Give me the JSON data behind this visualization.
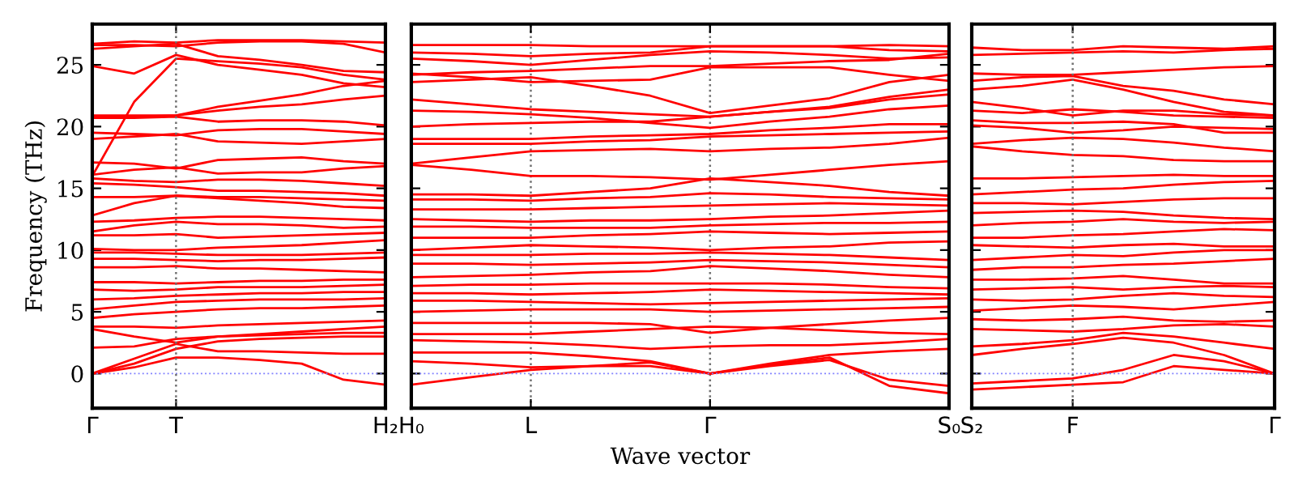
{
  "chart_data": [
    {
      "type": "line",
      "ylabel": "Frequency (THz)",
      "categories": [
        "Γ",
        null,
        "T",
        null,
        null,
        null,
        null,
        "H₂"
      ],
      "ylim": [
        -2.8,
        28.3
      ],
      "yticks": [
        0,
        5,
        10,
        15,
        20,
        25
      ],
      "tick_labels": true,
      "ref_lines": [
        {
          "axis": "y",
          "value": 0,
          "color": "#8080ff",
          "line_style": "dotted"
        },
        {
          "axis": "x",
          "value": "T",
          "color": "#707070",
          "line_style": "dotted"
        }
      ],
      "series": [
        {
          "color": "#ff0000",
          "values": [
            0,
            0.5,
            1.3,
            1.3,
            1.1,
            0.8,
            -0.5,
            -0.9
          ]
        },
        {
          "color": "#ff0000",
          "values": [
            0,
            0.8,
            2.0,
            2.6,
            2.8,
            2.9,
            3.0,
            3.0
          ]
        },
        {
          "color": "#ff0000",
          "values": [
            0,
            1.2,
            2.4,
            1.8,
            1.8,
            1.7,
            1.6,
            1.6
          ]
        },
        {
          "color": "#ff0000",
          "values": [
            2.1,
            2.2,
            2.8,
            3.0,
            3.1,
            3.2,
            3.3,
            3.3
          ]
        },
        {
          "color": "#ff0000",
          "values": [
            3.6,
            3.0,
            2.5,
            3.0,
            3.2,
            3.4,
            3.6,
            3.8
          ]
        },
        {
          "color": "#ff0000",
          "values": [
            3.8,
            3.8,
            3.7,
            3.9,
            4.0,
            4.1,
            4.2,
            4.3
          ]
        },
        {
          "color": "#ff0000",
          "values": [
            4.5,
            4.8,
            5.0,
            5.2,
            5.3,
            5.3,
            5.4,
            5.5
          ]
        },
        {
          "color": "#ff0000",
          "values": [
            5.2,
            5.5,
            5.8,
            5.9,
            6.0,
            6.0,
            6.0,
            6.1
          ]
        },
        {
          "color": "#ff0000",
          "values": [
            6.0,
            6.1,
            6.3,
            6.4,
            6.5,
            6.5,
            6.6,
            6.6
          ]
        },
        {
          "color": "#ff0000",
          "values": [
            6.8,
            6.7,
            6.8,
            7.0,
            7.0,
            7.0,
            7.1,
            7.2
          ]
        },
        {
          "color": "#ff0000",
          "values": [
            7.4,
            7.4,
            7.3,
            7.4,
            7.5,
            7.5,
            7.6,
            7.6
          ]
        },
        {
          "color": "#ff0000",
          "values": [
            8.6,
            8.6,
            8.7,
            8.5,
            8.5,
            8.4,
            8.3,
            8.2
          ]
        },
        {
          "color": "#ff0000",
          "values": [
            9.3,
            9.3,
            9.2,
            9.1,
            9.2,
            9.2,
            9.3,
            9.4
          ]
        },
        {
          "color": "#ff0000",
          "values": [
            9.8,
            9.8,
            9.7,
            9.6,
            9.6,
            9.6,
            9.7,
            9.8
          ]
        },
        {
          "color": "#ff0000",
          "values": [
            10.1,
            10.0,
            10.0,
            10.2,
            10.3,
            10.4,
            10.6,
            10.8
          ]
        },
        {
          "color": "#ff0000",
          "values": [
            11.2,
            11.2,
            11.3,
            11.0,
            11.1,
            11.2,
            11.3,
            11.4
          ]
        },
        {
          "color": "#ff0000",
          "values": [
            11.5,
            12.0,
            12.3,
            12.1,
            12.1,
            12.0,
            11.8,
            11.9
          ]
        },
        {
          "color": "#ff0000",
          "values": [
            12.3,
            12.4,
            12.6,
            12.7,
            12.7,
            12.6,
            12.5,
            12.4
          ]
        },
        {
          "color": "#ff0000",
          "values": [
            12.8,
            13.8,
            14.4,
            14.2,
            14.0,
            13.8,
            13.5,
            13.4
          ]
        },
        {
          "color": "#ff0000",
          "values": [
            14.3,
            14.3,
            14.4,
            14.3,
            14.3,
            14.2,
            14.1,
            14.0
          ]
        },
        {
          "color": "#ff0000",
          "values": [
            15.4,
            15.3,
            15.1,
            14.8,
            14.8,
            14.7,
            14.6,
            14.4
          ]
        },
        {
          "color": "#ff0000",
          "values": [
            15.8,
            15.6,
            15.5,
            15.7,
            15.7,
            15.6,
            15.4,
            15.2
          ]
        },
        {
          "color": "#ff0000",
          "values": [
            16.1,
            16.5,
            16.7,
            16.2,
            16.3,
            16.3,
            16.6,
            16.8
          ]
        },
        {
          "color": "#ff0000",
          "values": [
            17.1,
            17.0,
            16.6,
            17.3,
            17.4,
            17.5,
            17.2,
            17.0
          ]
        },
        {
          "color": "#ff0000",
          "values": [
            19.0,
            19.2,
            19.4,
            18.8,
            18.7,
            18.6,
            18.8,
            19.0
          ]
        },
        {
          "color": "#ff0000",
          "values": [
            19.5,
            19.4,
            19.3,
            19.7,
            19.8,
            19.8,
            19.6,
            19.4
          ]
        },
        {
          "color": "#ff0000",
          "values": [
            20.7,
            20.7,
            20.8,
            20.4,
            20.5,
            20.5,
            20.4,
            20.1
          ]
        },
        {
          "color": "#ff0000",
          "values": [
            20.9,
            20.9,
            20.9,
            21.3,
            21.6,
            21.8,
            22.2,
            22.5
          ]
        },
        {
          "color": "#ff0000",
          "values": [
            20.8,
            20.8,
            20.9,
            21.6,
            22.1,
            22.6,
            23.3,
            23.7
          ]
        },
        {
          "color": "#ff0000",
          "values": [
            16.0,
            22.0,
            25.5,
            25.3,
            25.1,
            24.8,
            24.2,
            23.8
          ]
        },
        {
          "color": "#ff0000",
          "values": [
            24.9,
            24.3,
            25.8,
            25.0,
            24.6,
            24.2,
            23.5,
            23.2
          ]
        },
        {
          "color": "#ff0000",
          "values": [
            26.3,
            26.5,
            26.7,
            25.7,
            25.4,
            25.0,
            24.5,
            24.4
          ]
        },
        {
          "color": "#ff0000",
          "values": [
            26.6,
            26.6,
            26.5,
            26.8,
            26.9,
            26.9,
            26.7,
            26.0
          ]
        },
        {
          "color": "#ff0000",
          "values": [
            26.7,
            26.9,
            26.8,
            27.0,
            27.0,
            27.0,
            26.9,
            26.8
          ]
        }
      ]
    },
    {
      "type": "line",
      "xlabel": "Wave vector",
      "categories": [
        "H₀",
        null,
        "L",
        null,
        null,
        "Γ",
        null,
        null,
        null,
        "S₀"
      ],
      "ylim": [
        -2.8,
        28.3
      ],
      "yticks": [
        0,
        5,
        10,
        15,
        20,
        25
      ],
      "grid": "x",
      "tick_labels": "x",
      "ref_lines": [
        {
          "axis": "y",
          "value": 0,
          "color": "#8080ff",
          "line_style": "dotted"
        }
      ],
      "series": [
        {
          "color": "#ff0000",
          "values": [
            -0.9,
            -0.3,
            0.3,
            0.6,
            0.9,
            0,
            0.6,
            1.1,
            -0.5,
            -1.0
          ]
        },
        {
          "color": "#ff0000",
          "values": [
            1.0,
            0.8,
            0.5,
            0.6,
            0.6,
            0,
            0.7,
            1.3,
            -1.0,
            -1.6
          ]
        },
        {
          "color": "#ff0000",
          "values": [
            1.7,
            1.7,
            1.7,
            1.4,
            1.0,
            0,
            0.8,
            1.5,
            1.8,
            2.0
          ]
        },
        {
          "color": "#ff0000",
          "values": [
            2.7,
            2.6,
            2.5,
            2.3,
            2.0,
            2.2,
            2.3,
            2.3,
            2.5,
            2.8
          ]
        },
        {
          "color": "#ff0000",
          "values": [
            3.2,
            3.2,
            3.2,
            3.4,
            3.6,
            3.8,
            3.7,
            3.5,
            3.3,
            3.2
          ]
        },
        {
          "color": "#ff0000",
          "values": [
            4.1,
            4.1,
            4.1,
            4.1,
            4.0,
            3.3,
            3.7,
            4.0,
            4.3,
            4.5
          ]
        },
        {
          "color": "#ff0000",
          "values": [
            5.0,
            5.1,
            5.2,
            5.2,
            5.2,
            5.0,
            5.1,
            5.2,
            5.3,
            5.4
          ]
        },
        {
          "color": "#ff0000",
          "values": [
            5.9,
            5.9,
            5.8,
            5.7,
            5.6,
            5.7,
            5.8,
            5.9,
            6.0,
            6.1
          ]
        },
        {
          "color": "#ff0000",
          "values": [
            6.5,
            6.5,
            6.4,
            6.5,
            6.6,
            6.8,
            6.7,
            6.6,
            6.5,
            6.4
          ]
        },
        {
          "color": "#ff0000",
          "values": [
            7.1,
            7.2,
            7.2,
            7.3,
            7.3,
            7.3,
            7.3,
            7.2,
            7.0,
            6.9
          ]
        },
        {
          "color": "#ff0000",
          "values": [
            7.8,
            7.9,
            8.0,
            8.2,
            8.3,
            8.7,
            8.5,
            8.3,
            8.0,
            7.8
          ]
        },
        {
          "color": "#ff0000",
          "values": [
            8.9,
            8.9,
            8.8,
            8.9,
            9.0,
            9.2,
            9.1,
            9.0,
            8.8,
            8.6
          ]
        },
        {
          "color": "#ff0000",
          "values": [
            9.6,
            9.6,
            9.6,
            9.7,
            9.7,
            9.8,
            9.7,
            9.6,
            9.4,
            9.2
          ]
        },
        {
          "color": "#ff0000",
          "values": [
            10.0,
            10.2,
            10.4,
            10.3,
            10.2,
            10.0,
            10.2,
            10.3,
            10.6,
            10.7
          ]
        },
        {
          "color": "#ff0000",
          "values": [
            11.0,
            11.0,
            11.0,
            11.2,
            11.3,
            11.5,
            11.4,
            11.3,
            11.4,
            11.5
          ]
        },
        {
          "color": "#ff0000",
          "values": [
            11.9,
            11.9,
            11.8,
            11.8,
            11.8,
            12.0,
            12.1,
            12.2,
            12.2,
            12.3
          ]
        },
        {
          "color": "#ff0000",
          "values": [
            12.5,
            12.4,
            12.3,
            12.4,
            12.4,
            12.5,
            12.7,
            12.8,
            13.0,
            13.2
          ]
        },
        {
          "color": "#ff0000",
          "values": [
            13.3,
            13.3,
            13.3,
            13.4,
            13.5,
            13.6,
            13.7,
            13.8,
            13.7,
            13.6
          ]
        },
        {
          "color": "#ff0000",
          "values": [
            14.1,
            14.1,
            14.0,
            14.2,
            14.3,
            14.6,
            14.5,
            14.3,
            14.2,
            14.1
          ]
        },
        {
          "color": "#ff0000",
          "values": [
            14.5,
            14.5,
            14.4,
            14.7,
            15.0,
            15.8,
            15.5,
            15.2,
            14.7,
            14.4
          ]
        },
        {
          "color": "#ff0000",
          "values": [
            16.9,
            16.5,
            16.0,
            16.0,
            15.9,
            15.7,
            16.1,
            16.5,
            16.9,
            17.2
          ]
        },
        {
          "color": "#ff0000",
          "values": [
            17.0,
            17.5,
            18.0,
            18.1,
            18.2,
            18.0,
            18.2,
            18.3,
            18.6,
            19.1
          ]
        },
        {
          "color": "#ff0000",
          "values": [
            18.6,
            18.6,
            18.6,
            18.8,
            18.9,
            19.2,
            19.3,
            19.4,
            19.5,
            19.6
          ]
        },
        {
          "color": "#ff0000",
          "values": [
            19.0,
            19.0,
            19.0,
            19.2,
            19.3,
            19.4,
            19.7,
            19.9,
            20.2,
            20.2
          ]
        },
        {
          "color": "#ff0000",
          "values": [
            20.0,
            20.2,
            20.3,
            20.4,
            20.4,
            20.8,
            21.2,
            21.5,
            22.2,
            22.6
          ]
        },
        {
          "color": "#ff0000",
          "values": [
            21.3,
            21.2,
            21.0,
            20.7,
            20.3,
            19.9,
            20.4,
            20.8,
            21.4,
            21.7
          ]
        },
        {
          "color": "#ff0000",
          "values": [
            22.2,
            21.8,
            21.4,
            21.2,
            21.0,
            20.8,
            21.2,
            21.6,
            22.4,
            23.0
          ]
        },
        {
          "color": "#ff0000",
          "values": [
            23.6,
            23.8,
            24.0,
            23.3,
            22.5,
            21.1,
            21.7,
            22.3,
            23.6,
            24.2
          ]
        },
        {
          "color": "#ff0000",
          "values": [
            24.3,
            24.0,
            23.6,
            23.7,
            23.8,
            24.8,
            24.8,
            24.8,
            24.2,
            23.7
          ]
        },
        {
          "color": "#ff0000",
          "values": [
            24.2,
            24.4,
            24.5,
            24.7,
            24.9,
            24.9,
            25.1,
            25.3,
            25.4,
            25.9
          ]
        },
        {
          "color": "#ff0000",
          "values": [
            25.5,
            25.3,
            25.0,
            25.4,
            25.8,
            26.1,
            26.0,
            25.8,
            25.5,
            25.6
          ]
        },
        {
          "color": "#ff0000",
          "values": [
            26.0,
            25.9,
            25.7,
            25.9,
            26.0,
            26.5,
            26.5,
            26.5,
            26.2,
            26.1
          ]
        },
        {
          "color": "#ff0000",
          "values": [
            26.6,
            26.6,
            26.6,
            26.5,
            26.5,
            26.5,
            26.5,
            26.5,
            26.6,
            26.5
          ]
        }
      ]
    },
    {
      "type": "line",
      "categories": [
        "S₂",
        null,
        "F",
        null,
        null,
        null,
        "Γ"
      ],
      "ylim": [
        -2.8,
        28.3
      ],
      "yticks": [
        0,
        5,
        10,
        15,
        20,
        25
      ],
      "tick_labels": "x",
      "ref_lines": [
        {
          "axis": "y",
          "value": 0,
          "color": "#8080ff",
          "line_style": "dotted"
        },
        {
          "axis": "x",
          "value": "F",
          "color": "#707070",
          "line_style": "dotted"
        }
      ],
      "series": [
        {
          "color": "#ff0000",
          "values": [
            -1.3,
            -1.1,
            -0.9,
            -0.7,
            0.6,
            0.3,
            0
          ]
        },
        {
          "color": "#ff0000",
          "values": [
            -0.8,
            -0.6,
            -0.4,
            0.3,
            1.5,
            1.0,
            0
          ]
        },
        {
          "color": "#ff0000",
          "values": [
            1.5,
            2.0,
            2.4,
            2.9,
            2.5,
            1.5,
            0
          ]
        },
        {
          "color": "#ff0000",
          "values": [
            2.2,
            2.4,
            2.7,
            3.3,
            3.0,
            2.5,
            2.0
          ]
        },
        {
          "color": "#ff0000",
          "values": [
            3.6,
            3.5,
            3.4,
            3.6,
            3.9,
            4.0,
            3.8
          ]
        },
        {
          "color": "#ff0000",
          "values": [
            4.4,
            4.3,
            4.4,
            4.6,
            4.3,
            4.2,
            4.3
          ]
        },
        {
          "color": "#ff0000",
          "values": [
            5.1,
            5.3,
            5.5,
            5.4,
            5.2,
            5.5,
            5.8
          ]
        },
        {
          "color": "#ff0000",
          "values": [
            6.0,
            5.9,
            6.0,
            6.3,
            6.5,
            6.3,
            6.2
          ]
        },
        {
          "color": "#ff0000",
          "values": [
            6.8,
            6.9,
            7.0,
            6.8,
            7.0,
            7.1,
            7.0
          ]
        },
        {
          "color": "#ff0000",
          "values": [
            7.6,
            7.6,
            7.7,
            7.9,
            7.6,
            7.3,
            7.3
          ]
        },
        {
          "color": "#ff0000",
          "values": [
            8.4,
            8.6,
            8.6,
            8.8,
            8.9,
            9.1,
            9.3
          ]
        },
        {
          "color": "#ff0000",
          "values": [
            9.2,
            9.4,
            9.6,
            9.5,
            9.8,
            10.0,
            10.0
          ]
        },
        {
          "color": "#ff0000",
          "values": [
            10.4,
            10.3,
            10.2,
            10.4,
            10.5,
            10.3,
            10.3
          ]
        },
        {
          "color": "#ff0000",
          "values": [
            11.0,
            11.0,
            11.2,
            11.3,
            11.5,
            11.7,
            11.6
          ]
        },
        {
          "color": "#ff0000",
          "values": [
            12.0,
            12.2,
            12.3,
            12.5,
            12.3,
            12.2,
            12.3
          ]
        },
        {
          "color": "#ff0000",
          "values": [
            13.0,
            13.1,
            13.2,
            13.1,
            12.8,
            12.6,
            12.5
          ]
        },
        {
          "color": "#ff0000",
          "values": [
            13.8,
            13.8,
            13.7,
            13.9,
            14.1,
            14.2,
            14.2
          ]
        },
        {
          "color": "#ff0000",
          "values": [
            14.5,
            14.7,
            14.9,
            15.0,
            15.3,
            15.5,
            15.6
          ]
        },
        {
          "color": "#ff0000",
          "values": [
            15.8,
            15.8,
            15.9,
            16.0,
            16.1,
            16.0,
            16.0
          ]
        },
        {
          "color": "#ff0000",
          "values": [
            18.4,
            18.0,
            17.7,
            17.6,
            17.3,
            17.2,
            17.2
          ]
        },
        {
          "color": "#ff0000",
          "values": [
            18.6,
            18.9,
            19.1,
            19.0,
            18.7,
            18.3,
            18.0
          ]
        },
        {
          "color": "#ff0000",
          "values": [
            20.1,
            19.9,
            19.5,
            19.7,
            20.0,
            19.9,
            19.8
          ]
        },
        {
          "color": "#ff0000",
          "values": [
            20.5,
            20.3,
            20.3,
            20.4,
            20.2,
            19.5,
            19.5
          ]
        },
        {
          "color": "#ff0000",
          "values": [
            21.3,
            21.1,
            21.4,
            21.2,
            20.9,
            20.8,
            20.7
          ]
        },
        {
          "color": "#ff0000",
          "values": [
            22.0,
            21.5,
            20.9,
            21.3,
            21.3,
            21.0,
            20.9
          ]
        },
        {
          "color": "#ff0000",
          "values": [
            23.0,
            23.3,
            23.8,
            23.0,
            22.0,
            21.2,
            20.9
          ]
        },
        {
          "color": "#ff0000",
          "values": [
            23.7,
            24.0,
            24.1,
            23.3,
            22.9,
            22.2,
            21.8
          ]
        },
        {
          "color": "#ff0000",
          "values": [
            24.3,
            24.2,
            24.2,
            24.4,
            24.6,
            24.8,
            24.9
          ]
        },
        {
          "color": "#ff0000",
          "values": [
            25.8,
            25.9,
            26.0,
            26.1,
            26.0,
            26.2,
            26.3
          ]
        },
        {
          "color": "#ff0000",
          "values": [
            26.4,
            26.2,
            26.2,
            26.5,
            26.4,
            26.3,
            26.5
          ]
        }
      ]
    }
  ]
}
